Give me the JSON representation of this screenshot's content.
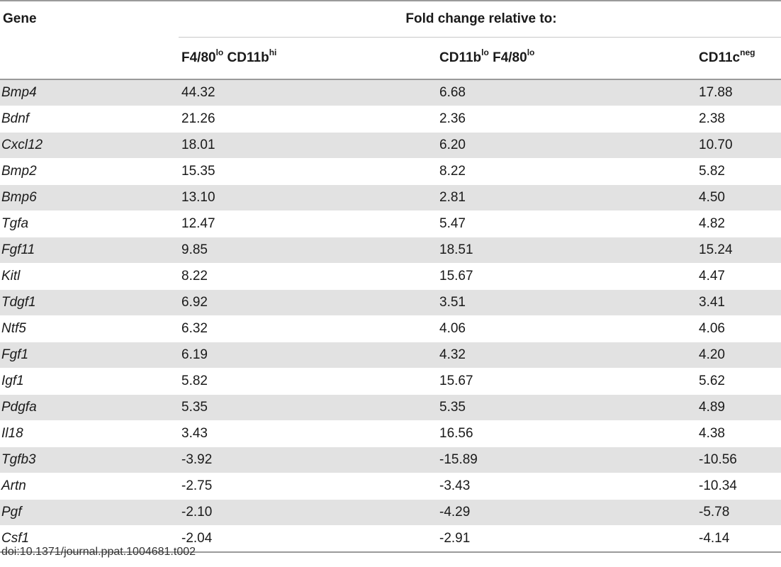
{
  "header": {
    "gene_label": "Gene",
    "fold_change_label": "Fold change relative to:",
    "columns": [
      {
        "main": "F4/80",
        "sup1": "lo",
        "main2": " CD11b",
        "sup2": "hi"
      },
      {
        "main": "CD11b",
        "sup1": "lo",
        "main2": " F4/80",
        "sup2": "lo"
      },
      {
        "main": "CD11c",
        "sup1": "neg",
        "main2": "",
        "sup2": ""
      }
    ]
  },
  "rows": [
    {
      "gene": "Bmp4",
      "a": "44.32",
      "b": "6.68",
      "c": "17.88"
    },
    {
      "gene": "Bdnf",
      "a": "21.26",
      "b": "2.36",
      "c": "2.38"
    },
    {
      "gene": "Cxcl12",
      "a": "18.01",
      "b": "6.20",
      "c": "10.70"
    },
    {
      "gene": "Bmp2",
      "a": "15.35",
      "b": "8.22",
      "c": "5.82"
    },
    {
      "gene": "Bmp6",
      "a": "13.10",
      "b": "2.81",
      "c": "4.50"
    },
    {
      "gene": "Tgfa",
      "a": "12.47",
      "b": "5.47",
      "c": "4.82"
    },
    {
      "gene": "Fgf11",
      "a": "9.85",
      "b": "18.51",
      "c": "15.24"
    },
    {
      "gene": "Kitl",
      "a": "8.22",
      "b": "15.67",
      "c": "4.47"
    },
    {
      "gene": "Tdgf1",
      "a": "6.92",
      "b": "3.51",
      "c": "3.41"
    },
    {
      "gene": "Ntf5",
      "a": "6.32",
      "b": "4.06",
      "c": "4.06"
    },
    {
      "gene": "Fgf1",
      "a": "6.19",
      "b": "4.32",
      "c": "4.20"
    },
    {
      "gene": "Igf1",
      "a": "5.82",
      "b": "15.67",
      "c": "5.62"
    },
    {
      "gene": "Pdgfa",
      "a": "5.35",
      "b": "5.35",
      "c": "4.89"
    },
    {
      "gene": "Il18",
      "a": "3.43",
      "b": "16.56",
      "c": "4.38"
    },
    {
      "gene": "Tgfb3",
      "a": "-3.92",
      "b": "-15.89",
      "c": "-10.56"
    },
    {
      "gene": "Artn",
      "a": "-2.75",
      "b": "-3.43",
      "c": "-10.34"
    },
    {
      "gene": "Pgf",
      "a": "-2.10",
      "b": "-4.29",
      "c": "-5.78"
    },
    {
      "gene": "Csf1",
      "a": "-2.04",
      "b": "-2.91",
      "c": "-4.14"
    }
  ],
  "footer": {
    "doi": "doi:10.1371/journal.ppat.1004681.t002"
  }
}
